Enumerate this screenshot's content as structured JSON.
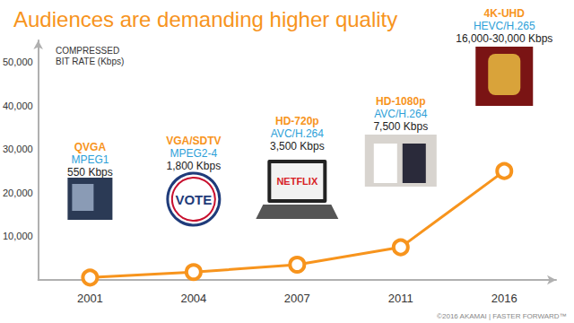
{
  "chart_data": {
    "type": "line",
    "title": "Audiences are demanding higher quality",
    "y_label": "COMPRESSED BIT RATE (Kbps)",
    "categories": [
      "2001",
      "2004",
      "2007",
      "2011",
      "2016"
    ],
    "values": [
      550,
      1800,
      3500,
      7500,
      25000
    ],
    "color": "#f7941d",
    "marker": "circle",
    "ylim": [
      0,
      55000
    ],
    "yticks": [
      {
        "value": 10000,
        "label": "10,000"
      },
      {
        "value": 20000,
        "label": "20,000"
      },
      {
        "value": 30000,
        "label": "30,000"
      },
      {
        "value": 40000,
        "label": "40,000"
      },
      {
        "value": 50000,
        "label": "50,000"
      }
    ],
    "grid": false,
    "annotations": [
      {
        "resolution": "QVGA",
        "codec": "MPEG1",
        "bitrate": "550 Kbps"
      },
      {
        "resolution": "VGA/SDTV",
        "codec": "MPEG2-4",
        "bitrate": "1,800 Kbps",
        "image_text": "VOTE"
      },
      {
        "resolution": "HD-720p",
        "codec": "AVC/H.264",
        "bitrate": "3,500 Kbps",
        "image_text": "NETFLIX"
      },
      {
        "resolution": "HD-1080p",
        "codec": "AVC/H.264",
        "bitrate": "7,500 Kbps"
      },
      {
        "resolution": "4K-UHD",
        "codec": "HEVC/H.265",
        "bitrate": "16,000-30,000 Kbps"
      }
    ],
    "footer": "©2016 AKAMAI | FASTER FORWARD™"
  }
}
